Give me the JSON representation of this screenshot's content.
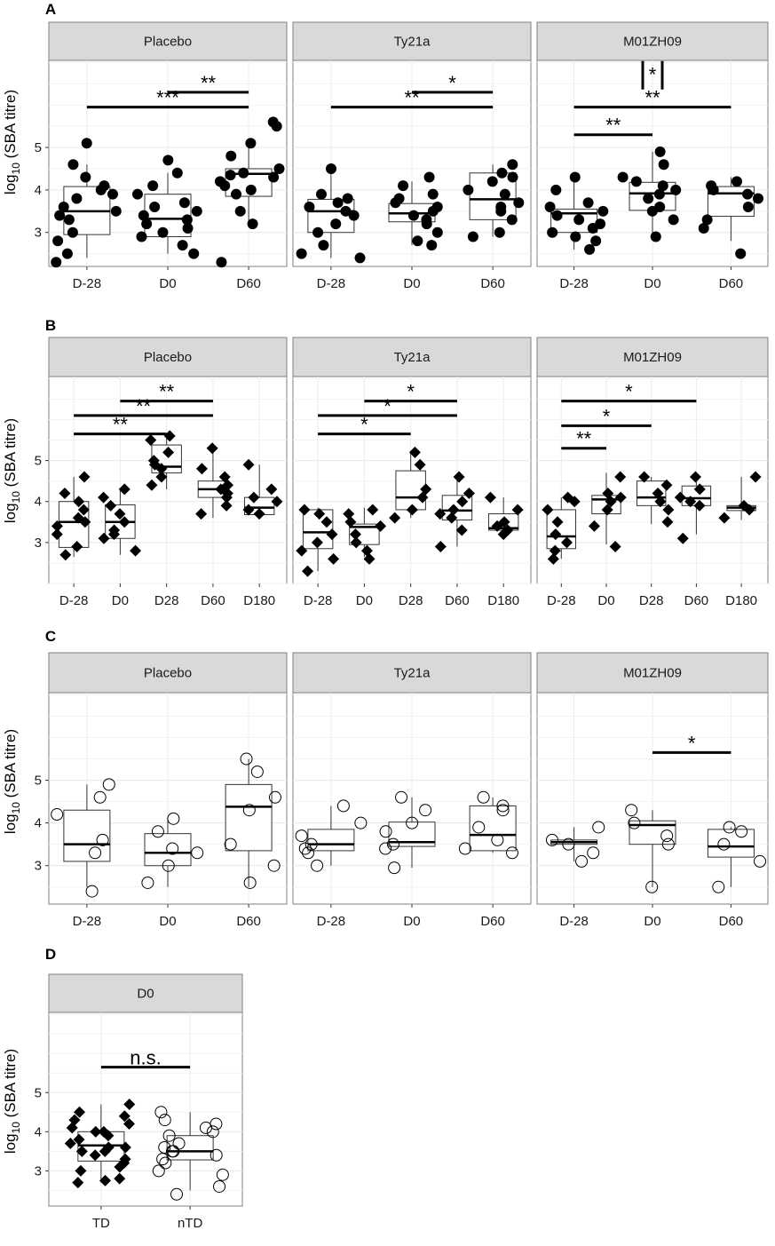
{
  "chart_data": [
    {
      "type": "boxplot",
      "label": "A",
      "ylabel": "log10 (SBA titre)",
      "ylim": [
        2.2,
        7.05
      ],
      "yticks": [
        3,
        4,
        5
      ],
      "marker": "filled-circle",
      "categories": [
        "D-28",
        "D0",
        "D60"
      ],
      "facets": [
        {
          "strip": "Placebo",
          "boxes": [
            {
              "q1": 2.95,
              "median": 3.5,
              "q3": 4.08,
              "whisker_low": 2.4,
              "whisker_high": 4.6
            },
            {
              "q1": 2.9,
              "median": 3.32,
              "q3": 3.9,
              "whisker_low": 2.5,
              "whisker_high": 4.4
            },
            {
              "q1": 3.85,
              "median": 4.38,
              "q3": 4.5,
              "whisker_low": 3.2,
              "whisker_high": 5.1
            }
          ],
          "points": [
            [
              2.3,
              2.5,
              2.8,
              3.0,
              3.3,
              3.4,
              3.5,
              3.6,
              3.8,
              3.9,
              4.0,
              4.1,
              4.3,
              4.6,
              5.1
            ],
            [
              2.5,
              2.7,
              2.9,
              3.0,
              3.1,
              3.2,
              3.3,
              3.4,
              3.5,
              3.6,
              3.7,
              3.9,
              4.1,
              4.4,
              4.7
            ],
            [
              2.3,
              3.2,
              3.5,
              3.9,
              4.0,
              4.1,
              4.2,
              4.3,
              4.35,
              4.4,
              4.5,
              4.8,
              5.1,
              5.5,
              5.6
            ]
          ],
          "significance": [
            {
              "from": 1,
              "to": 2,
              "label": "**",
              "level": 6.3
            },
            {
              "from": 0,
              "to": 2,
              "label": "***",
              "level": 5.95
            }
          ]
        },
        {
          "strip": "Ty21a",
          "boxes": [
            {
              "q1": 3.0,
              "median": 3.5,
              "q3": 3.78,
              "whisker_low": 2.4,
              "whisker_high": 4.4
            },
            {
              "q1": 3.25,
              "median": 3.45,
              "q3": 3.68,
              "whisker_low": 2.7,
              "whisker_high": 4.2
            },
            {
              "q1": 3.3,
              "median": 3.78,
              "q3": 4.4,
              "whisker_low": 2.9,
              "whisker_high": 4.6
            }
          ],
          "points": [
            [
              2.4,
              2.5,
              2.7,
              3.0,
              3.2,
              3.4,
              3.5,
              3.6,
              3.7,
              3.8,
              3.9,
              4.5
            ],
            [
              2.7,
              2.8,
              3.0,
              3.2,
              3.3,
              3.4,
              3.5,
              3.6,
              3.7,
              3.8,
              3.9,
              4.1,
              4.3
            ],
            [
              2.9,
              3.0,
              3.3,
              3.5,
              3.6,
              3.7,
              3.9,
              4.0,
              4.2,
              4.3,
              4.4,
              4.6
            ]
          ],
          "significance": [
            {
              "from": 1,
              "to": 2,
              "label": "*",
              "level": 6.3
            },
            {
              "from": 0,
              "to": 2,
              "label": "**",
              "level": 5.95
            }
          ]
        },
        {
          "strip": "M01ZH09",
          "boxes": [
            {
              "q1": 3.0,
              "median": 3.45,
              "q3": 3.55,
              "whisker_low": 2.6,
              "whisker_high": 4.3
            },
            {
              "q1": 3.52,
              "median": 3.92,
              "q3": 4.18,
              "whisker_low": 2.9,
              "whisker_high": 4.9
            },
            {
              "q1": 3.38,
              "median": 3.92,
              "q3": 4.08,
              "whisker_low": 2.8,
              "whisker_high": 4.3
            }
          ],
          "points": [
            [
              2.6,
              2.8,
              2.9,
              3.0,
              3.1,
              3.2,
              3.3,
              3.4,
              3.5,
              3.6,
              3.7,
              4.0,
              4.3
            ],
            [
              2.9,
              3.3,
              3.5,
              3.6,
              3.8,
              3.9,
              4.0,
              4.1,
              4.2,
              4.3,
              4.6,
              4.9
            ],
            [
              2.5,
              3.1,
              3.3,
              3.6,
              3.8,
              3.9,
              4.0,
              4.1,
              4.2
            ]
          ],
          "significance": [
            {
              "from": 1,
              "to": 1,
              "label": "*",
              "level": 6.7,
              "vertical": true
            },
            {
              "from": 0,
              "to": 2,
              "label": "**",
              "level": 5.95
            },
            {
              "from": 0,
              "to": 1,
              "label": "**",
              "level": 5.3
            }
          ]
        }
      ]
    },
    {
      "type": "boxplot",
      "label": "B",
      "ylabel": "log10 (SBA titre)",
      "ylim": [
        2.0,
        7.05
      ],
      "yticks": [
        3,
        4,
        5
      ],
      "marker": "filled-diamond",
      "categories": [
        "D-28",
        "D0",
        "D28",
        "D60",
        "D180"
      ],
      "facets": [
        {
          "strip": "Placebo",
          "boxes": [
            {
              "q1": 2.88,
              "median": 3.5,
              "q3": 4.0,
              "whisker_low": 2.65,
              "whisker_high": 4.6
            },
            {
              "q1": 3.1,
              "median": 3.5,
              "q3": 3.92,
              "whisker_low": 2.7,
              "whisker_high": 4.3
            },
            {
              "q1": 4.7,
              "median": 4.85,
              "q3": 5.38,
              "whisker_low": 4.3,
              "whisker_high": 5.6
            },
            {
              "q1": 4.1,
              "median": 4.3,
              "q3": 4.5,
              "whisker_low": 3.6,
              "whisker_high": 5.3
            },
            {
              "q1": 3.68,
              "median": 3.85,
              "q3": 4.1,
              "whisker_low": 3.6,
              "whisker_high": 4.9
            }
          ],
          "points": [
            [
              2.7,
              2.9,
              3.2,
              3.4,
              3.5,
              3.6,
              3.8,
              4.0,
              4.2,
              4.6
            ],
            [
              2.8,
              3.1,
              3.2,
              3.3,
              3.5,
              3.7,
              3.9,
              4.1,
              4.3
            ],
            [
              4.4,
              4.6,
              4.8,
              4.9,
              5.0,
              5.2,
              5.5,
              5.6
            ],
            [
              3.7,
              3.9,
              4.1,
              4.2,
              4.3,
              4.4,
              4.6,
              4.8,
              5.3
            ],
            [
              3.7,
              3.8,
              4.0,
              4.1,
              4.3,
              4.9
            ]
          ],
          "significance": [
            {
              "from": 1,
              "to": 3,
              "label": "**",
              "level": 6.45
            },
            {
              "from": 0,
              "to": 3,
              "label": "**",
              "level": 6.1
            },
            {
              "from": 0,
              "to": 2,
              "label": "**",
              "level": 5.65
            }
          ]
        },
        {
          "strip": "Ty21a",
          "boxes": [
            {
              "q1": 2.85,
              "median": 3.25,
              "q3": 3.8,
              "whisker_low": 2.3,
              "whisker_high": 3.85
            },
            {
              "q1": 2.95,
              "median": 3.38,
              "q3": 3.45,
              "whisker_low": 2.65,
              "whisker_high": 3.85
            },
            {
              "q1": 3.8,
              "median": 4.1,
              "q3": 4.75,
              "whisker_low": 3.6,
              "whisker_high": 5.2
            },
            {
              "q1": 3.55,
              "median": 3.78,
              "q3": 4.15,
              "whisker_low": 2.9,
              "whisker_high": 4.6
            },
            {
              "q1": 3.3,
              "median": 3.35,
              "q3": 3.7,
              "whisker_low": 3.1,
              "whisker_high": 4.1
            }
          ],
          "points": [
            [
              2.3,
              2.6,
              2.8,
              3.0,
              3.2,
              3.5,
              3.7,
              3.8
            ],
            [
              2.6,
              2.8,
              3.0,
              3.2,
              3.4,
              3.5,
              3.7,
              3.8
            ],
            [
              3.6,
              3.8,
              4.1,
              4.3,
              4.9,
              5.2
            ],
            [
              2.9,
              3.3,
              3.6,
              3.7,
              3.8,
              4.0,
              4.2,
              4.6
            ],
            [
              3.2,
              3.3,
              3.4,
              3.5,
              3.8,
              4.1
            ]
          ],
          "significance": [
            {
              "from": 1,
              "to": 3,
              "label": "*",
              "level": 6.45
            },
            {
              "from": 0,
              "to": 3,
              "label": "*",
              "level": 6.1
            },
            {
              "from": 0,
              "to": 2,
              "label": "*",
              "level": 5.65
            }
          ]
        },
        {
          "strip": "M01ZH09",
          "boxes": [
            {
              "q1": 2.85,
              "median": 3.15,
              "q3": 3.8,
              "whisker_low": 2.6,
              "whisker_high": 4.1
            },
            {
              "q1": 3.7,
              "median": 4.05,
              "q3": 4.15,
              "whisker_low": 2.95,
              "whisker_high": 4.7
            },
            {
              "q1": 3.9,
              "median": 4.1,
              "q3": 4.5,
              "whisker_low": 3.45,
              "whisker_high": 4.6
            },
            {
              "q1": 3.9,
              "median": 4.08,
              "q3": 4.38,
              "whisker_low": 3.2,
              "whisker_high": 4.6
            },
            {
              "q1": 3.78,
              "median": 3.85,
              "q3": 3.9,
              "whisker_low": 3.55,
              "whisker_high": 4.6
            }
          ],
          "points": [
            [
              2.6,
              2.8,
              3.0,
              3.2,
              3.5,
              3.8,
              4.0,
              4.1
            ],
            [
              2.9,
              3.4,
              3.8,
              4.0,
              4.1,
              4.2,
              4.6
            ],
            [
              3.5,
              3.8,
              4.0,
              4.2,
              4.4,
              4.6
            ],
            [
              3.1,
              3.9,
              4.0,
              4.1,
              4.3,
              4.6
            ],
            [
              3.6,
              3.8,
              3.9,
              4.6
            ]
          ],
          "significance": [
            {
              "from": 0,
              "to": 3,
              "label": "*",
              "level": 6.45
            },
            {
              "from": 0,
              "to": 2,
              "label": "*",
              "level": 5.85
            },
            {
              "from": 0,
              "to": 1,
              "label": "**",
              "level": 5.3
            }
          ]
        }
      ]
    },
    {
      "type": "boxplot",
      "label": "C",
      "ylabel": "log10 (SBA titre)",
      "ylim": [
        2.1,
        7.05
      ],
      "yticks": [
        3,
        4,
        5
      ],
      "marker": "open-circle",
      "categories": [
        "D-28",
        "D0",
        "D60"
      ],
      "facets": [
        {
          "strip": "Placebo",
          "boxes": [
            {
              "q1": 3.1,
              "median": 3.5,
              "q3": 4.3,
              "whisker_low": 2.5,
              "whisker_high": 4.9
            },
            {
              "q1": 3.0,
              "median": 3.3,
              "q3": 3.75,
              "whisker_low": 2.5,
              "whisker_high": 4.1
            },
            {
              "q1": 3.35,
              "median": 4.38,
              "q3": 4.9,
              "whisker_low": 2.5,
              "whisker_high": 5.5
            }
          ],
          "points": [
            [
              2.4,
              3.3,
              3.6,
              4.2,
              4.6,
              4.9
            ],
            [
              2.6,
              3.0,
              3.3,
              3.4,
              3.8,
              4.1
            ],
            [
              2.6,
              3.0,
              3.5,
              4.3,
              4.6,
              5.2,
              5.5
            ]
          ],
          "significance": []
        },
        {
          "strip": "Ty21a",
          "boxes": [
            {
              "q1": 3.35,
              "median": 3.5,
              "q3": 3.85,
              "whisker_low": 3.0,
              "whisker_high": 4.4
            },
            {
              "q1": 3.45,
              "median": 3.55,
              "q3": 4.02,
              "whisker_low": 2.95,
              "whisker_high": 4.6
            },
            {
              "q1": 3.35,
              "median": 3.72,
              "q3": 4.4,
              "whisker_low": 3.3,
              "whisker_high": 4.6
            }
          ],
          "points": [
            [
              3.0,
              3.3,
              3.4,
              3.5,
              3.7,
              4.0,
              4.4
            ],
            [
              2.95,
              3.4,
              3.5,
              3.8,
              4.0,
              4.3,
              4.6
            ],
            [
              3.3,
              3.4,
              3.6,
              3.9,
              4.3,
              4.4,
              4.6
            ]
          ],
          "significance": []
        },
        {
          "strip": "M01ZH09",
          "boxes": [
            {
              "q1": 3.5,
              "median": 3.55,
              "q3": 3.6,
              "whisker_low": 3.1,
              "whisker_high": 3.9
            },
            {
              "q1": 3.5,
              "median": 3.95,
              "q3": 4.05,
              "whisker_low": 2.5,
              "whisker_high": 4.3
            },
            {
              "q1": 3.2,
              "median": 3.45,
              "q3": 3.85,
              "whisker_low": 2.5,
              "whisker_high": 3.9
            }
          ],
          "points": [
            [
              3.1,
              3.3,
              3.5,
              3.6,
              3.9
            ],
            [
              2.5,
              3.5,
              3.7,
              4.0,
              4.3
            ],
            [
              2.5,
              3.1,
              3.5,
              3.8,
              3.9
            ]
          ],
          "significance": [
            {
              "from": 1,
              "to": 2,
              "label": "*",
              "level": 5.65
            }
          ]
        }
      ]
    },
    {
      "type": "boxplot",
      "label": "D",
      "ylabel": "log10 (SBA titre)",
      "ylim": [
        2.1,
        7.05
      ],
      "yticks": [
        3,
        4,
        5
      ],
      "categories": [
        "TD",
        "nTD"
      ],
      "category_markers": [
        "filled-diamond",
        "open-circle"
      ],
      "facets": [
        {
          "strip": "D0",
          "boxes": [
            {
              "q1": 3.25,
              "median": 3.65,
              "q3": 4.0,
              "whisker_low": 2.7,
              "whisker_high": 4.7
            },
            {
              "q1": 3.28,
              "median": 3.5,
              "q3": 3.9,
              "whisker_low": 2.5,
              "whisker_high": 4.5
            }
          ],
          "points": [
            [
              2.7,
              2.75,
              2.8,
              3.0,
              3.1,
              3.2,
              3.3,
              3.4,
              3.5,
              3.5,
              3.6,
              3.6,
              3.7,
              3.8,
              3.9,
              4.0,
              4.0,
              4.1,
              4.2,
              4.3,
              4.4,
              4.5,
              4.7
            ],
            [
              2.4,
              2.6,
              2.9,
              3.0,
              3.2,
              3.3,
              3.4,
              3.5,
              3.5,
              3.6,
              3.7,
              3.9,
              4.0,
              4.1,
              4.2,
              4.3,
              4.5
            ]
          ],
          "significance": [
            {
              "from": 0,
              "to": 1,
              "label": "n.s.",
              "level": 5.65
            }
          ]
        }
      ]
    }
  ]
}
